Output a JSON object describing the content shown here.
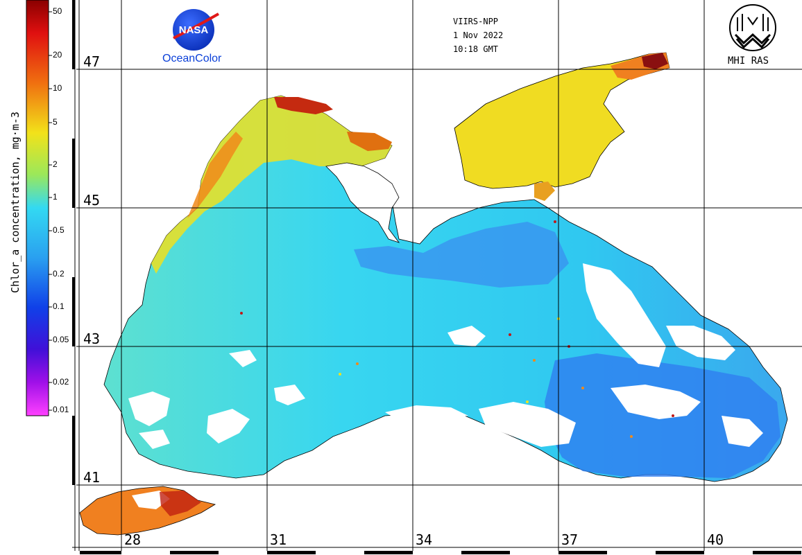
{
  "colorbar": {
    "title": "Chlor_a concentration, mg·m-3",
    "ticks": [
      "50",
      "20",
      "10",
      "5",
      "2",
      "1",
      "0.5",
      "0.2",
      "0.1",
      "0.05",
      "0.02",
      "0.01"
    ]
  },
  "header": {
    "sensor": "VIIRS-NPP",
    "date": "1 Nov 2022",
    "time": "10:18 GMT"
  },
  "logos": {
    "left_text": "OceanColor",
    "left_badge": "NASA",
    "right_text": "MHI RAS"
  },
  "grid": {
    "latitudes": [
      "47",
      "45",
      "43",
      "41"
    ],
    "longitudes": [
      "28",
      "31",
      "34",
      "37",
      "40"
    ]
  },
  "colors": {
    "land": "#ffffff",
    "deep_blue": "#3a8ff0",
    "cyan": "#33d9f2",
    "yellow": "#f2e21a",
    "orange": "#f08a1a",
    "red": "#c01818",
    "grid": "#000000"
  }
}
